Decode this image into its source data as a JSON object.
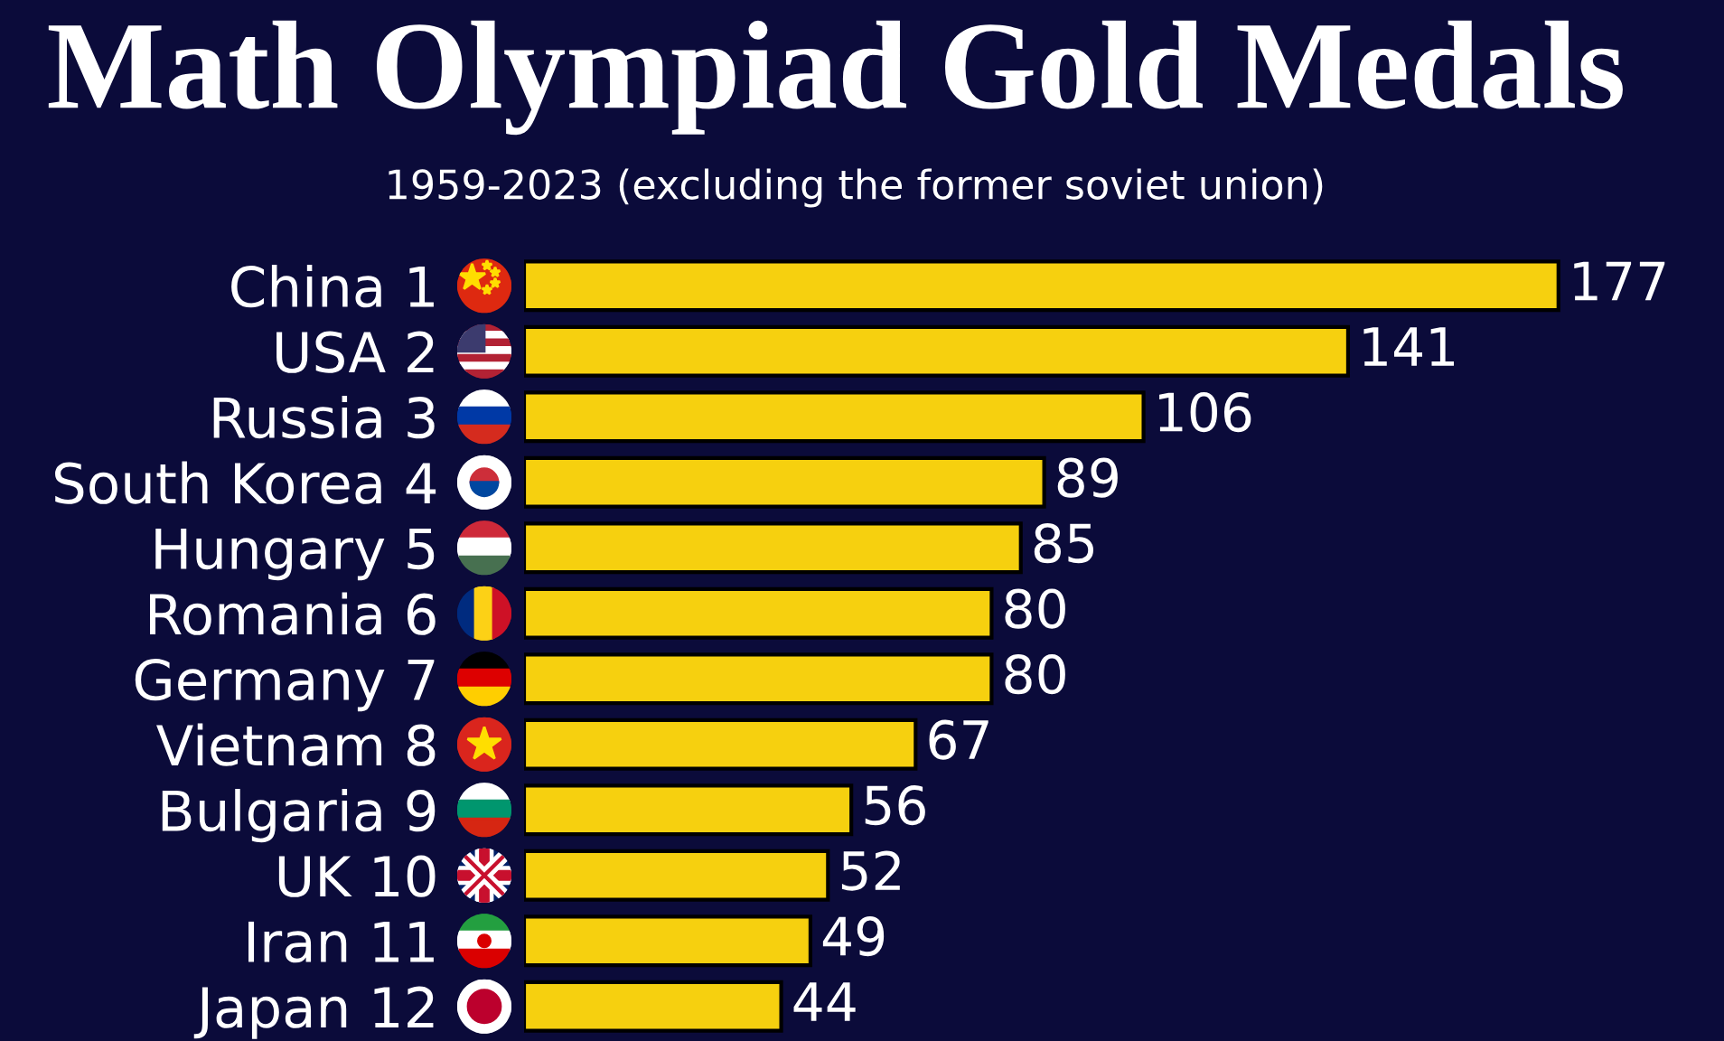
{
  "chart_data": {
    "type": "bar",
    "orientation": "horizontal",
    "title": "Math Olympiad Gold Medals",
    "subtitle": "1959-2023 (excluding the former soviet union)",
    "categories": [
      "China 1",
      "USA 2",
      "Russia 3",
      "South Korea 4",
      "Hungary 5",
      "Romania 6",
      "Germany 7",
      "Vietnam 8",
      "Bulgaria 9",
      "UK 10",
      "Iran 11",
      "Japan 12"
    ],
    "values": [
      177,
      141,
      106,
      89,
      85,
      80,
      80,
      67,
      56,
      52,
      49,
      44
    ],
    "color": "#f6d00f",
    "data_labels": true,
    "tick_labels": "y"
  }
}
